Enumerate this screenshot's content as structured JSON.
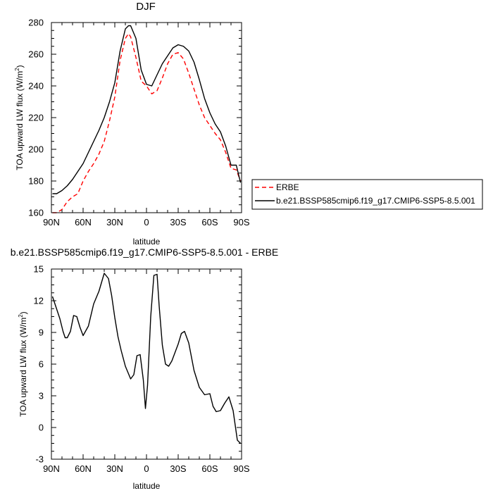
{
  "chart_data": [
    {
      "type": "line",
      "title": "DJF",
      "xlabel": "latitude",
      "ylabel": "TOA upward LW flux (W/m",
      "ylabel_sup": "2",
      "ylabel_tail": ")",
      "xlim": [
        -90,
        90
      ],
      "ylim": [
        160,
        280
      ],
      "xticks": [
        -90,
        -60,
        -30,
        0,
        30,
        60,
        90
      ],
      "xtick_labels": [
        "90N",
        "60N",
        "30N",
        "0",
        "30S",
        "60S",
        "90S"
      ],
      "yticks": [
        160,
        180,
        200,
        220,
        240,
        260,
        280
      ],
      "ytick_labels": [
        "160",
        "180",
        "200",
        "220",
        "240",
        "260",
        "280"
      ],
      "legend": "outside-right",
      "series": [
        {
          "name": "ERBE",
          "color": "#ff0000",
          "dash": "dashed",
          "x": [
            -89,
            -85,
            -80,
            -75,
            -70,
            -65,
            -60,
            -55,
            -50,
            -45,
            -40,
            -35,
            -30,
            -25,
            -20,
            -17,
            -15,
            -10,
            -5,
            0,
            5,
            10,
            15,
            20,
            25,
            30,
            35,
            40,
            45,
            50,
            55,
            60,
            65,
            70,
            75,
            80,
            85,
            89
          ],
          "y": [
            160,
            160,
            162,
            167,
            170,
            172,
            180,
            186,
            191,
            197,
            205,
            218,
            233,
            256,
            270,
            273,
            271,
            258,
            243,
            240,
            235,
            237,
            245,
            254,
            260,
            261,
            257,
            248,
            238,
            228,
            220,
            215,
            210,
            206,
            198,
            188,
            187,
            180
          ]
        },
        {
          "name": "b.e21.BSSP585cmip6.f19_g17.CMIP6-SSP5-8.5.001",
          "color": "#000000",
          "dash": "solid",
          "x": [
            -89,
            -85,
            -80,
            -75,
            -70,
            -65,
            -60,
            -55,
            -50,
            -45,
            -40,
            -35,
            -30,
            -25,
            -20,
            -17,
            -15,
            -10,
            -5,
            0,
            5,
            10,
            15,
            20,
            25,
            30,
            35,
            40,
            45,
            50,
            55,
            60,
            65,
            70,
            75,
            80,
            85,
            89
          ],
          "y": [
            172,
            172,
            174,
            177,
            181,
            186,
            191,
            198,
            205,
            212,
            220,
            230,
            242,
            262,
            276,
            278,
            278,
            270,
            250,
            241,
            240,
            247,
            254,
            259,
            264,
            266,
            265,
            262,
            255,
            244,
            232,
            223,
            216,
            211,
            202,
            190,
            190,
            179
          ]
        }
      ]
    },
    {
      "type": "line",
      "title": "b.e21.BSSP585cmip6.f19_g17.CMIP6-SSP5-8.5.001 - ERBE",
      "xlabel": "latitude",
      "ylabel": "TOA upward LW flux (W/m",
      "ylabel_sup": "2",
      "ylabel_tail": ")",
      "xlim": [
        -90,
        90
      ],
      "ylim": [
        -3,
        15
      ],
      "xticks": [
        -90,
        -60,
        -30,
        0,
        30,
        60,
        90
      ],
      "xtick_labels": [
        "90N",
        "60N",
        "30N",
        "0",
        "30S",
        "60S",
        "90S"
      ],
      "yticks": [
        -3,
        0,
        3,
        6,
        9,
        12,
        15
      ],
      "ytick_labels": [
        "-3",
        "0",
        "3",
        "6",
        "9",
        "12",
        "15"
      ],
      "series": [
        {
          "color": "#000000",
          "dash": "solid",
          "x": [
            -89,
            -85,
            -82,
            -79,
            -77,
            -75,
            -72,
            -69,
            -66,
            -63,
            -60,
            -55,
            -50,
            -45,
            -40,
            -36,
            -33,
            -30,
            -27,
            -24,
            -20,
            -15,
            -12,
            -9,
            -6,
            -3,
            -1,
            1,
            4,
            7,
            10,
            12,
            15,
            18,
            21,
            24,
            27,
            30,
            33,
            36,
            40,
            45,
            50,
            55,
            60,
            63,
            66,
            70,
            74,
            78,
            82,
            86,
            89
          ],
          "y": [
            12.4,
            11.2,
            10.3,
            9.1,
            8.5,
            8.5,
            9.1,
            10.6,
            10.5,
            9.5,
            8.7,
            9.6,
            11.7,
            12.9,
            14.6,
            14.1,
            12.5,
            10.4,
            8.6,
            7.3,
            5.8,
            4.6,
            5.0,
            6.8,
            6.9,
            4.5,
            1.8,
            4.0,
            10.5,
            14.4,
            14.5,
            11.5,
            7.8,
            6.0,
            5.8,
            6.3,
            7.1,
            7.9,
            8.9,
            9.1,
            8.0,
            5.4,
            3.8,
            3.1,
            3.2,
            2.0,
            1.5,
            1.6,
            2.3,
            2.9,
            1.6,
            -1.2,
            -1.5
          ]
        }
      ]
    }
  ]
}
